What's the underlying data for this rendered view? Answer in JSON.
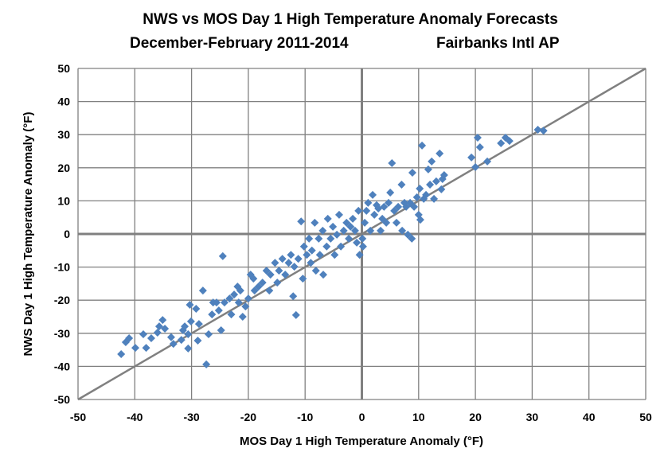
{
  "chart_data": {
    "type": "scatter",
    "title_line1": "NWS vs MOS Day 1 High Temperature Anomaly Forecasts",
    "title_line2_left": "December-February 2011-2014",
    "title_line2_right": "Fairbanks Intl AP",
    "xlabel": "MOS Day 1 High Temperature Anomaly (°F)",
    "ylabel": "NWS Day 1 High Temperature Anomaly (°F)",
    "xlim": [
      -50,
      50
    ],
    "ylim": [
      -50,
      50
    ],
    "xticks": [
      -50,
      -40,
      -30,
      -20,
      -10,
      0,
      10,
      20,
      30,
      40,
      50
    ],
    "yticks": [
      -50,
      -40,
      -30,
      -20,
      -10,
      0,
      10,
      20,
      30,
      40,
      50
    ],
    "grid": true,
    "reference_line": "y = x",
    "marker": "diamond",
    "marker_color": "#4F81BD",
    "line_color": "#808080",
    "points": [
      [
        -42.4,
        -36.3
      ],
      [
        -41.6,
        -32.7
      ],
      [
        -41,
        -31.5
      ],
      [
        -39.9,
        -34.4
      ],
      [
        -38.5,
        -30.3
      ],
      [
        -38,
        -34.4
      ],
      [
        -37.1,
        -31.5
      ],
      [
        -36,
        -29.8
      ],
      [
        -35.7,
        -27.9
      ],
      [
        -35.1,
        -26
      ],
      [
        -34.7,
        -28.6
      ],
      [
        -33.6,
        -31.2
      ],
      [
        -33.2,
        -33.2
      ],
      [
        -31.8,
        -32
      ],
      [
        -31.5,
        -29.1
      ],
      [
        -31.2,
        -27.9
      ],
      [
        -30.6,
        -30.3
      ],
      [
        -30.1,
        -26.4
      ],
      [
        -30.6,
        -34.6
      ],
      [
        -30.3,
        -21.4
      ],
      [
        -29.2,
        -22.6
      ],
      [
        -28.7,
        -27.2
      ],
      [
        -28,
        -17.1
      ],
      [
        -27.4,
        -39.4
      ],
      [
        -28.9,
        -32.2
      ],
      [
        -27,
        -30.3
      ],
      [
        -26.4,
        -24.3
      ],
      [
        -26.2,
        -20.7
      ],
      [
        -25.6,
        -20.7
      ],
      [
        -25.2,
        -23.1
      ],
      [
        -24.8,
        -29.1
      ],
      [
        -24.5,
        -6.7
      ],
      [
        -24.2,
        -20.7
      ],
      [
        -23.3,
        -19.5
      ],
      [
        -23,
        -24.3
      ],
      [
        -22.5,
        -18.3
      ],
      [
        -21.9,
        -15.9
      ],
      [
        -21.7,
        -20.7
      ],
      [
        -21.4,
        -17.1
      ],
      [
        -21,
        -25
      ],
      [
        -20.5,
        -21.9
      ],
      [
        -20,
        -19.5
      ],
      [
        -19.6,
        -12.3
      ],
      [
        -19.1,
        -13.5
      ],
      [
        -18.9,
        -17.1
      ],
      [
        -18.2,
        -15.9
      ],
      [
        -17.5,
        -14.7
      ],
      [
        -16.8,
        -11.1
      ],
      [
        -16.3,
        -17.1
      ],
      [
        -16.1,
        -12.3
      ],
      [
        -15.3,
        -8.7
      ],
      [
        -14.9,
        -14.7
      ],
      [
        -14.6,
        -11.1
      ],
      [
        -14,
        -7.5
      ],
      [
        -13.5,
        -12.3
      ],
      [
        -12.9,
        -8.7
      ],
      [
        -12.5,
        -6.3
      ],
      [
        -12.1,
        -18.8
      ],
      [
        -11.6,
        -24.5
      ],
      [
        -11.9,
        -9.9
      ],
      [
        -11.2,
        -7.5
      ],
      [
        -10.7,
        3.8
      ],
      [
        -10.4,
        -13.5
      ],
      [
        -10.2,
        -3.8
      ],
      [
        -9.7,
        -6.3
      ],
      [
        -9.3,
        -1.4
      ],
      [
        -9,
        -8.7
      ],
      [
        -8.8,
        -5
      ],
      [
        -8.3,
        3.4
      ],
      [
        -8.1,
        -11.1
      ],
      [
        -7.6,
        -1.4
      ],
      [
        -7.4,
        -6.3
      ],
      [
        -6.9,
        1
      ],
      [
        -6.8,
        -12.3
      ],
      [
        -6.2,
        -3.8
      ],
      [
        -6,
        4.6
      ],
      [
        -5.5,
        -1.4
      ],
      [
        -5.1,
        2.2
      ],
      [
        -4.8,
        -6.3
      ],
      [
        -4.4,
        -0.2
      ],
      [
        -4,
        5.8
      ],
      [
        -3.7,
        -3.8
      ],
      [
        -3.2,
        1
      ],
      [
        -2.7,
        3.4
      ],
      [
        -2.3,
        -1.4
      ],
      [
        -2,
        2.2
      ],
      [
        -1.6,
        4.6
      ],
      [
        -1.2,
        1
      ],
      [
        -0.9,
        -2.6
      ],
      [
        -0.6,
        7
      ],
      [
        -0.4,
        -6.3
      ],
      [
        0.1,
        -1.4
      ],
      [
        0.2,
        -3.8
      ],
      [
        0.5,
        3.4
      ],
      [
        0.8,
        7
      ],
      [
        1.1,
        9.4
      ],
      [
        1.5,
        1
      ],
      [
        1.9,
        11.8
      ],
      [
        2.2,
        5.8
      ],
      [
        2.6,
        8.7
      ],
      [
        2.9,
        7.7
      ],
      [
        3.3,
        1
      ],
      [
        3.6,
        4.6
      ],
      [
        3.9,
        8.2
      ],
      [
        4.3,
        3.4
      ],
      [
        4.7,
        9.4
      ],
      [
        5,
        12.5
      ],
      [
        5.3,
        21.4
      ],
      [
        5.7,
        7
      ],
      [
        6.1,
        3.4
      ],
      [
        6.4,
        8.2
      ],
      [
        7,
        14.9
      ],
      [
        7.1,
        1
      ],
      [
        7.5,
        9.4
      ],
      [
        7.8,
        8.2
      ],
      [
        8.1,
        -0.2
      ],
      [
        8.5,
        9.4
      ],
      [
        8.8,
        -1.4
      ],
      [
        8.9,
        18.5
      ],
      [
        9.2,
        8.2
      ],
      [
        9.7,
        11.1
      ],
      [
        10,
        5.8
      ],
      [
        10.2,
        13.7
      ],
      [
        10.3,
        4.3
      ],
      [
        10.6,
        26.7
      ],
      [
        10.9,
        10.6
      ],
      [
        11.3,
        11.8
      ],
      [
        11.7,
        19.5
      ],
      [
        12,
        14.9
      ],
      [
        12.3,
        21.9
      ],
      [
        12.7,
        10.6
      ],
      [
        13.1,
        15.9
      ],
      [
        13.7,
        24.3
      ],
      [
        14,
        13.5
      ],
      [
        14.2,
        16.6
      ],
      [
        14.5,
        17.8
      ],
      [
        19.3,
        23.1
      ],
      [
        20,
        20.2
      ],
      [
        20.4,
        29.1
      ],
      [
        20.8,
        26.2
      ],
      [
        22.1,
        21.9
      ],
      [
        24.5,
        27.4
      ],
      [
        25.3,
        29.1
      ],
      [
        26,
        28.1
      ],
      [
        31,
        31.5
      ],
      [
        32,
        31.2
      ]
    ]
  }
}
